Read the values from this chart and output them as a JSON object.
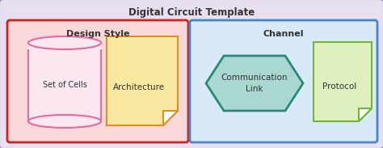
{
  "title": "Digital Circuit Template",
  "outer_bg": "#e8e0f0",
  "outer_border": "#9080b8",
  "design_style_label": "Design Style",
  "design_style_bg": "#f8d8d8",
  "design_style_border": "#cc2222",
  "channel_label": "Channel",
  "channel_bg": "#d8eaf8",
  "channel_border": "#4488cc",
  "set_of_cells_label": "Set of Cells",
  "set_of_cells_color": "#e868a0",
  "set_of_cells_fill": "#fce8f0",
  "architecture_label": "Architecture",
  "architecture_color": "#e09020",
  "architecture_bg": "#fae8a0",
  "comm_link_label": "Communication\nLink",
  "comm_link_color": "#2a8878",
  "comm_link_bg": "#a8d8d0",
  "protocol_label": "Protocol",
  "protocol_color": "#70b830",
  "protocol_bg": "#dff0c0"
}
